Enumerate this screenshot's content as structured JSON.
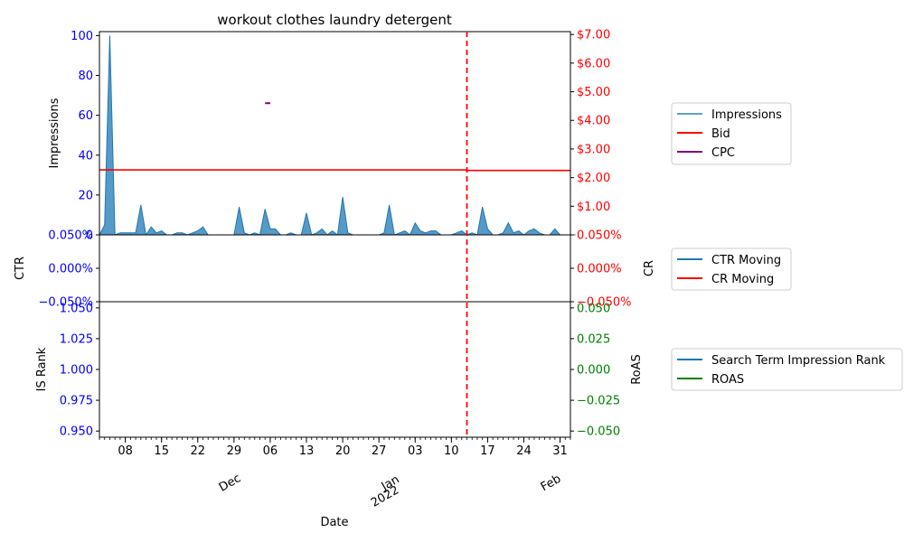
{
  "chart_data": {
    "type": "area",
    "title": "workout clothes laundry detergent",
    "xlabel": "Date",
    "date_start": "2021-11-03",
    "date_end": "2022-02-02",
    "marker_date": "2022-01-13",
    "x_minor_ticks": [
      "08",
      "15",
      "22",
      "29",
      "06",
      "13",
      "20",
      "27",
      "03",
      "10",
      "17",
      "24",
      "31"
    ],
    "x_major_ticks": [
      {
        "date": "2021-12-01",
        "label": "Dec",
        "label2": ""
      },
      {
        "date": "2022-01-01",
        "label": "Jan",
        "label2": "2022"
      },
      {
        "date": "2022-02-01",
        "label": "Feb",
        "label2": ""
      }
    ],
    "panels": [
      {
        "id": "impressions",
        "ylabel_left": "Impressions",
        "ylabel_right": "",
        "left_ylim": [
          0,
          102
        ],
        "left_ticks": [
          "0",
          "20",
          "40",
          "60",
          "80",
          "100"
        ],
        "right_ylim": [
          0,
          7.1
        ],
        "right_ticks": [
          "$1.00",
          "$2.00",
          "$3.00",
          "$4.00",
          "$5.00",
          "$6.00",
          "$7.00"
        ],
        "left_tick_color": "#0000ff",
        "right_tick_color": "#ff0000",
        "series": [
          {
            "name": "Impressions",
            "type": "area",
            "color": "#1f77b4",
            "values": [
              0,
              5,
              100,
              0,
              1,
              1,
              1,
              1,
              15,
              0,
              4,
              1,
              2,
              0,
              0,
              1,
              1,
              0,
              1,
              2,
              4,
              0,
              0,
              0,
              0,
              0,
              0,
              14,
              1,
              0,
              1,
              0,
              13,
              3,
              3,
              0,
              0,
              1,
              0,
              0,
              11,
              0,
              1,
              3,
              0,
              2,
              0,
              19,
              1,
              0,
              0,
              0,
              0,
              0,
              0,
              1,
              15,
              0,
              1,
              2,
              0,
              6,
              2,
              1,
              2,
              2,
              0,
              0,
              0,
              1,
              2,
              0,
              1,
              0,
              14,
              3,
              0,
              0,
              1,
              6,
              1,
              2,
              0,
              2,
              3,
              1,
              0,
              0,
              3,
              0,
              0,
              0,
              0
            ]
          },
          {
            "name": "Bid",
            "type": "step",
            "color": "#ff0000",
            "axis": "right",
            "points": [
              [
                "2021-11-03",
                2.27
              ],
              [
                "2022-01-13",
                2.27
              ],
              [
                "2022-01-13",
                2.25
              ],
              [
                "2022-02-02",
                2.25
              ]
            ]
          },
          {
            "name": "CPC",
            "type": "segment",
            "color": "#800080",
            "axis": "right",
            "points": [
              [
                "2021-12-05",
                4.6
              ],
              [
                "2021-12-06",
                4.6
              ]
            ]
          }
        ]
      },
      {
        "id": "ctr",
        "ylabel_left": "CTR",
        "ylabel_right": "CR",
        "left_ylim": [
          -0.05,
          0.05
        ],
        "left_ticks": [
          "−0.050%",
          "0.000%",
          "0.050%"
        ],
        "right_ylim": [
          -0.05,
          0.05
        ],
        "right_ticks": [
          "−0.050%",
          "0.000%",
          "0.050%"
        ],
        "left_tick_color": "#0000ff",
        "right_tick_color": "#ff0000",
        "series": [
          {
            "name": "CTR Moving",
            "type": "line",
            "color": "#1f77b4",
            "values": []
          },
          {
            "name": "CR Moving",
            "type": "line",
            "color": "#ff0000",
            "values": []
          }
        ]
      },
      {
        "id": "isrank",
        "ylabel_left": "IS Rank",
        "ylabel_right": "RoAS",
        "left_ylim": [
          0.945,
          1.055
        ],
        "left_ticks": [
          "0.950",
          "0.975",
          "1.000",
          "1.025",
          "1.050"
        ],
        "right_ylim": [
          -0.055,
          0.055
        ],
        "right_ticks": [
          "−0.050",
          "−0.025",
          "0.000",
          "0.025",
          "0.050"
        ],
        "left_tick_color": "#0000ff",
        "right_tick_color": "#008000",
        "series": [
          {
            "name": "Search Term Impression Rank",
            "type": "line",
            "color": "#1f77b4",
            "values": []
          },
          {
            "name": "ROAS",
            "type": "line",
            "color": "#008000",
            "values": []
          }
        ]
      }
    ],
    "legends": [
      {
        "items": [
          {
            "label": "Impressions",
            "color": "#1f77b4",
            "alpha": 0.7
          },
          {
            "label": "Bid",
            "color": "#ff0000",
            "alpha": 1
          },
          {
            "label": "CPC",
            "color": "#800080",
            "alpha": 1
          }
        ]
      },
      {
        "items": [
          {
            "label": "CTR Moving",
            "color": "#1f77b4",
            "alpha": 1
          },
          {
            "label": "CR Moving",
            "color": "#ff0000",
            "alpha": 1
          }
        ]
      },
      {
        "items": [
          {
            "label": "Search Term Impression Rank",
            "color": "#1f77b4",
            "alpha": 1
          },
          {
            "label": "ROAS",
            "color": "#008000",
            "alpha": 1
          }
        ]
      }
    ]
  }
}
